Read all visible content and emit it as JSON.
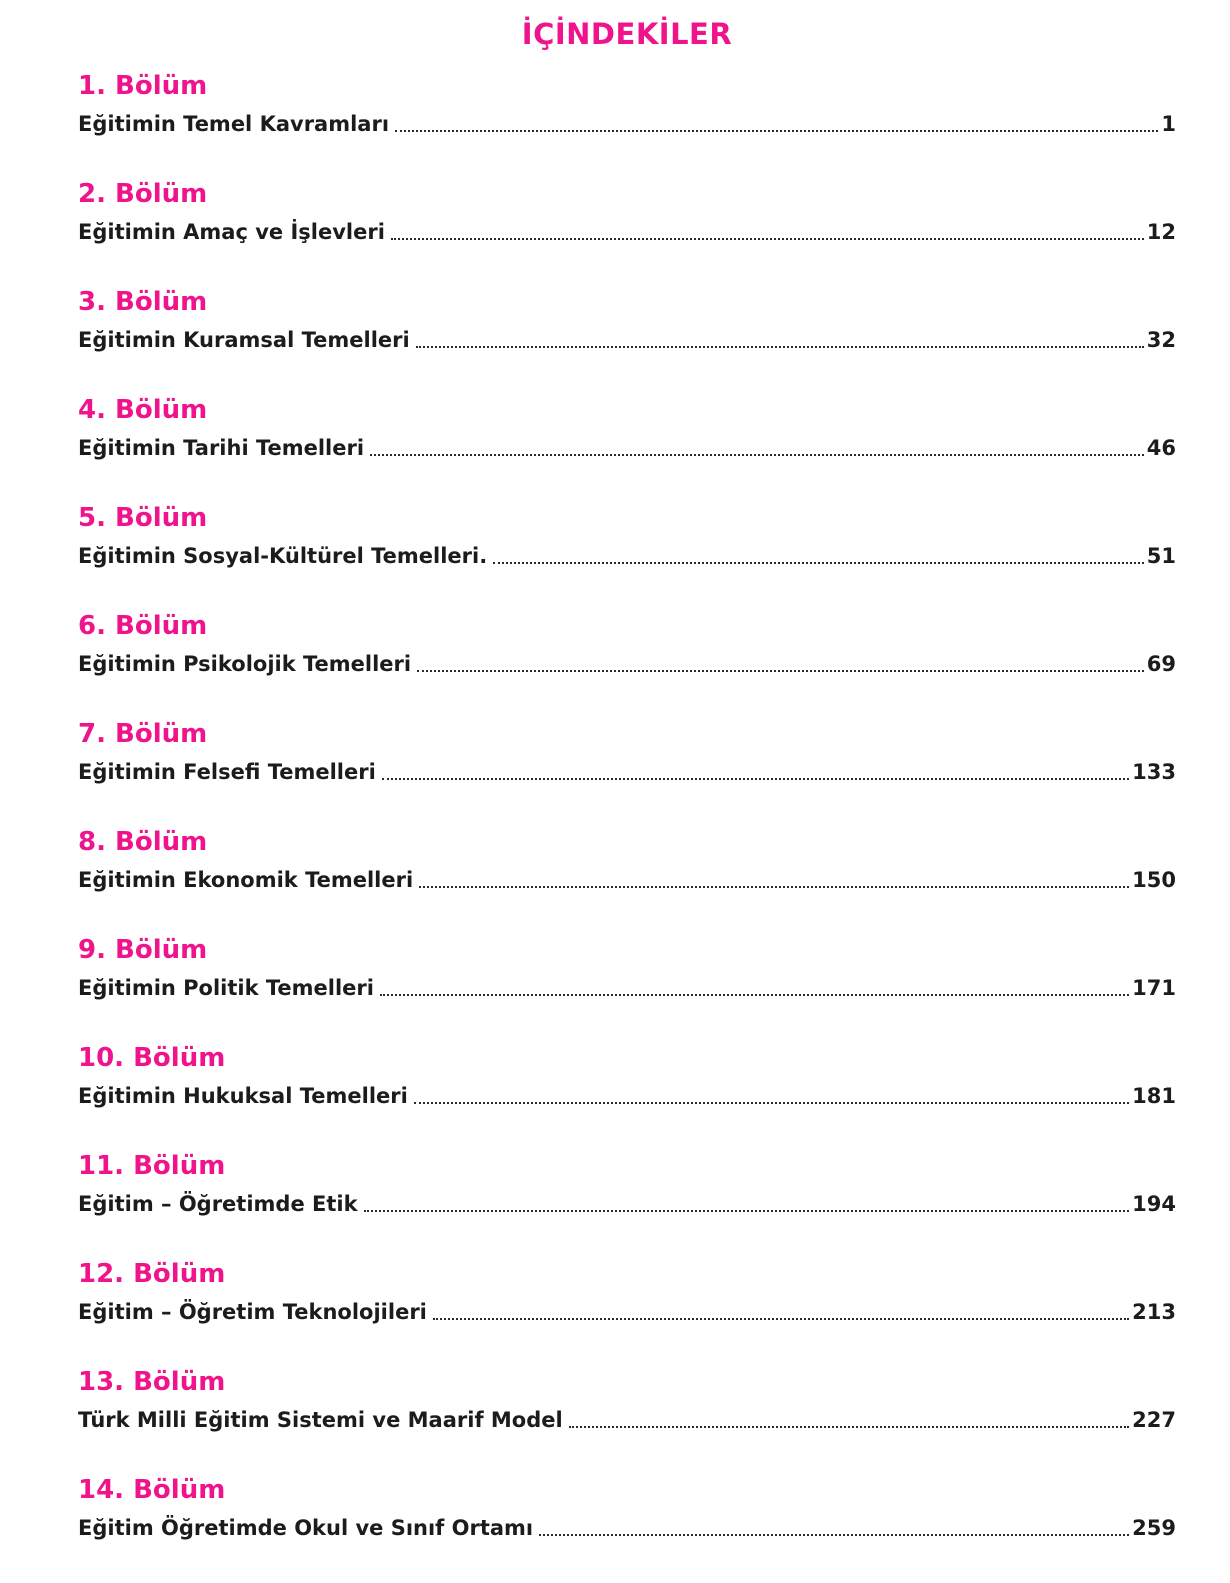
{
  "page": {
    "title": "İÇİNDEKİLER",
    "accent_color": "#F0148C",
    "text_color": "#1c1c1c"
  },
  "toc": {
    "entries": [
      {
        "chapter": "1. Bölüm",
        "title": "Eğitimin Temel Kavramları",
        "page": "1"
      },
      {
        "chapter": "2. Bölüm",
        "title": "Eğitimin Amaç ve İşlevleri",
        "page": "12"
      },
      {
        "chapter": "3. Bölüm",
        "title": "Eğitimin Kuramsal Temelleri",
        "page": "32"
      },
      {
        "chapter": "4. Bölüm",
        "title": "Eğitimin Tarihi Temelleri",
        "page": "46"
      },
      {
        "chapter": "5. Bölüm",
        "title": "Eğitimin Sosyal-Kültürel Temelleri.",
        "page": "51"
      },
      {
        "chapter": "6. Bölüm",
        "title": "Eğitimin Psikolojik Temelleri",
        "page": "69"
      },
      {
        "chapter": "7. Bölüm",
        "title": "Eğitimin Felsefi Temelleri",
        "page": "133"
      },
      {
        "chapter": "8. Bölüm",
        "title": "Eğitimin Ekonomik Temelleri",
        "page": "150"
      },
      {
        "chapter": "9. Bölüm",
        "title": "Eğitimin Politik Temelleri",
        "page": "171"
      },
      {
        "chapter": "10. Bölüm",
        "title": "Eğitimin Hukuksal Temelleri",
        "page": "181"
      },
      {
        "chapter": "11. Bölüm",
        "title": "Eğitim – Öğretimde Etik",
        "page": "194"
      },
      {
        "chapter": "12. Bölüm",
        "title": "Eğitim – Öğretim Teknolojileri",
        "page": "213"
      },
      {
        "chapter": "13. Bölüm",
        "title": "Türk Milli Eğitim Sistemi ve Maarif Model",
        "page": "227"
      },
      {
        "chapter": "14. Bölüm",
        "title": "Eğitim Öğretimde Okul ve Sınıf Ortamı",
        "page": "259"
      }
    ]
  }
}
